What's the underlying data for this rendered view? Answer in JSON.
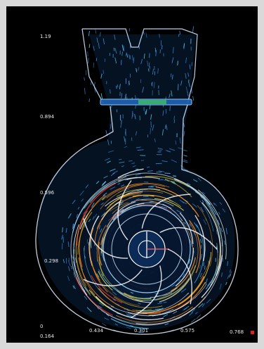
{
  "scale_left": {
    "ticks": [
      "1.19",
      "0.894",
      "0.596",
      "0.298",
      "0"
    ]
  },
  "scale_bottom": {
    "ticks": [
      "0.164",
      "0.434",
      "0.301",
      "0.575",
      "0.768"
    ]
  },
  "colors": {
    "background": "#000000",
    "frame": "#d9d9d9",
    "vector_blue": "#3a8fe0",
    "vector_cyan": "#59c8f0",
    "streak_white": "#f2f2f2",
    "streak_orange": "#f08a20",
    "streak_red": "#d83020",
    "streak_yellow": "#e8d030",
    "streak_green": "#3fc060"
  }
}
